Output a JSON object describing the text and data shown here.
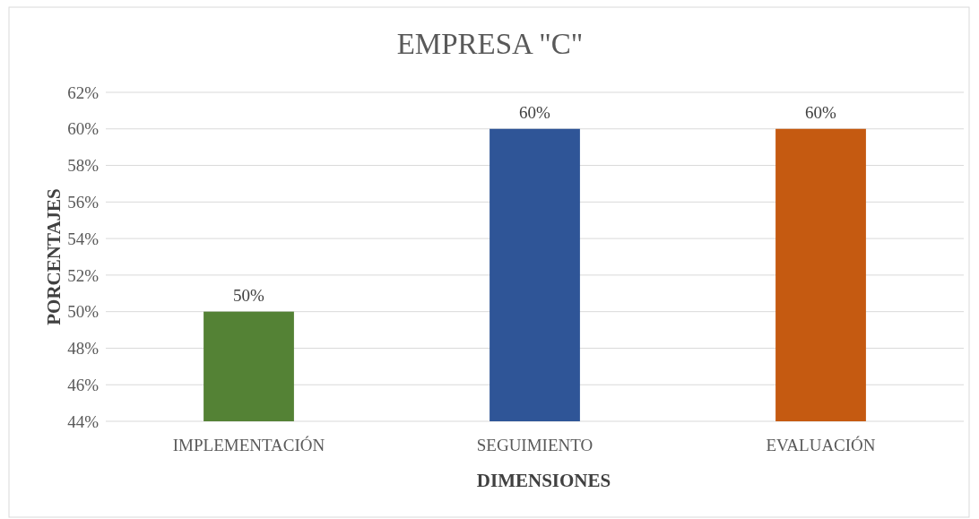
{
  "chart_data": {
    "type": "bar",
    "title": "EMPRESA \"C\"",
    "xlabel": "DIMENSIONES",
    "ylabel": "PORCENTAJES",
    "categories": [
      "IMPLEMENTACIÓN",
      "SEGUIMIENTO",
      "EVALUACIÓN"
    ],
    "values": [
      50,
      60,
      60
    ],
    "colors": [
      "#548235",
      "#2f5597",
      "#c55a11"
    ],
    "value_labels": [
      "50%",
      "60%",
      "60%"
    ],
    "ylim": [
      44,
      62
    ],
    "yticks": [
      {
        "value": 44,
        "label": "44%"
      },
      {
        "value": 46,
        "label": "46%"
      },
      {
        "value": 48,
        "label": "48%"
      },
      {
        "value": 50,
        "label": "50%"
      },
      {
        "value": 52,
        "label": "52%"
      },
      {
        "value": 54,
        "label": "54%"
      },
      {
        "value": 56,
        "label": "56%"
      },
      {
        "value": 58,
        "label": "58%"
      },
      {
        "value": 60,
        "label": "60%"
      },
      {
        "value": 62,
        "label": "62%"
      }
    ],
    "grid": "y"
  }
}
